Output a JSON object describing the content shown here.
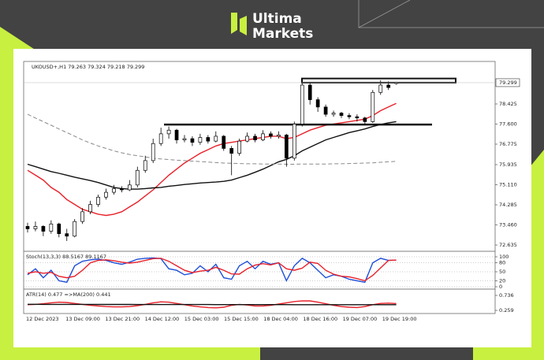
{
  "header": {
    "brand_line1": "Ultima",
    "brand_line2": "Markets"
  },
  "chart_data": [
    {
      "type": "candlestick",
      "title": "UKOUSD+,H1  79.263 79.324 79.218 79.299",
      "open": [
        73.4,
        73.3,
        73.4,
        73.2,
        73.5,
        73.1,
        73.0,
        73.6,
        74.0,
        74.3,
        74.6,
        74.8,
        74.95,
        74.9,
        75.1,
        75.7,
        76.1,
        76.8,
        77.2,
        77.35,
        76.95,
        77.0,
        76.85,
        77.05,
        76.9,
        77.1,
        76.6,
        76.4,
        76.9,
        77.1,
        76.95,
        77.2,
        77.1,
        77.15,
        76.2,
        77.6,
        79.2,
        78.6,
        78.3,
        78.0,
        78.05,
        77.95,
        77.9,
        77.85,
        77.7,
        78.9,
        79.2,
        79.263
      ],
      "high": [
        73.55,
        73.6,
        73.45,
        73.65,
        73.55,
        73.3,
        73.7,
        74.15,
        74.45,
        74.7,
        74.95,
        75.1,
        75.05,
        75.3,
        75.85,
        76.3,
        77.0,
        77.45,
        77.5,
        77.4,
        77.15,
        77.1,
        77.2,
        77.15,
        77.3,
        77.15,
        76.7,
        77.0,
        77.25,
        77.2,
        77.35,
        77.3,
        77.3,
        77.2,
        77.7,
        79.47,
        79.3,
        78.7,
        78.4,
        78.15,
        78.1,
        78.05,
        78.0,
        77.9,
        79.0,
        79.4,
        79.35,
        79.324
      ],
      "low": [
        73.15,
        73.2,
        73.0,
        73.1,
        72.95,
        72.8,
        72.95,
        73.5,
        73.9,
        74.2,
        74.5,
        74.7,
        74.8,
        74.85,
        75.0,
        75.6,
        76.0,
        76.7,
        77.0,
        76.8,
        76.85,
        76.7,
        76.75,
        76.8,
        76.85,
        76.5,
        75.5,
        76.3,
        76.85,
        76.85,
        76.9,
        77.0,
        77.0,
        75.85,
        76.1,
        77.5,
        78.4,
        78.1,
        77.9,
        77.9,
        77.85,
        77.8,
        77.7,
        77.6,
        77.65,
        78.8,
        79.0,
        79.218
      ],
      "close": [
        73.3,
        73.4,
        73.2,
        73.5,
        73.1,
        73.0,
        73.6,
        74.0,
        74.3,
        74.6,
        74.8,
        74.95,
        74.9,
        75.1,
        75.7,
        76.1,
        76.8,
        77.2,
        77.35,
        76.95,
        77.0,
        76.85,
        77.05,
        76.9,
        77.1,
        76.6,
        76.4,
        76.9,
        77.1,
        76.95,
        77.2,
        77.1,
        77.15,
        76.2,
        77.6,
        79.2,
        78.6,
        78.3,
        78.0,
        78.05,
        77.95,
        77.9,
        77.85,
        77.7,
        78.9,
        79.2,
        79.1,
        79.299
      ],
      "up_color": "#ffffff",
      "down_color": "#000000",
      "lines": [
        {
          "color": "#e8212a",
          "values": [
            75.7,
            75.5,
            75.3,
            75.0,
            74.8,
            74.5,
            74.3,
            74.1,
            74.0,
            73.9,
            73.85,
            73.9,
            74.0,
            74.2,
            74.4,
            74.65,
            74.9,
            75.2,
            75.5,
            75.75,
            76.0,
            76.2,
            76.4,
            76.55,
            76.7,
            76.8,
            76.85,
            76.9,
            76.95,
            77.0,
            77.05,
            77.1,
            77.1,
            77.0,
            77.05,
            77.2,
            77.35,
            77.45,
            77.55,
            77.6,
            77.65,
            77.7,
            77.75,
            77.8,
            77.95,
            78.15,
            78.3,
            78.45
          ]
        },
        {
          "color": "#111111",
          "values": [
            75.95,
            75.85,
            75.75,
            75.65,
            75.58,
            75.5,
            75.42,
            75.35,
            75.28,
            75.2,
            75.1,
            75.0,
            74.95,
            74.93,
            74.93,
            74.95,
            74.98,
            75.0,
            75.05,
            75.08,
            75.12,
            75.15,
            75.18,
            75.2,
            75.22,
            75.25,
            75.3,
            75.4,
            75.5,
            75.62,
            75.75,
            75.9,
            76.05,
            76.15,
            76.3,
            76.5,
            76.65,
            76.8,
            76.95,
            77.05,
            77.15,
            77.25,
            77.32,
            77.4,
            77.5,
            77.58,
            77.65,
            77.7
          ]
        },
        {
          "color": "#8a8a8a",
          "dash": true,
          "values": [
            78.0,
            77.85,
            77.7,
            77.55,
            77.4,
            77.25,
            77.1,
            76.95,
            76.82,
            76.7,
            76.6,
            76.5,
            76.42,
            76.35,
            76.3,
            76.25,
            76.2,
            76.17,
            76.14,
            76.12,
            76.1,
            76.08,
            76.06,
            76.04,
            76.02,
            76.0,
            75.99,
            75.98,
            75.97,
            75.97,
            75.96,
            75.96,
            75.96,
            75.95,
            75.95,
            75.96,
            75.96,
            75.96,
            75.96,
            75.97,
            75.97,
            75.98,
            75.99,
            76.0,
            76.01,
            76.03,
            76.05,
            76.07
          ]
        }
      ],
      "levels": [
        77.58
      ],
      "zone": [
        79.3,
        79.47
      ],
      "last_price": 79.299,
      "ylim": [
        72.41,
        80.17
      ],
      "yticks": [
        78.425,
        {
          "value": 77.6,
          "label": "77.600"
        },
        76.775,
        75.935,
        {
          "value": 75.11,
          "label": "75.110"
        },
        74.285,
        {
          "value": 73.46,
          "label": "73.460"
        },
        72.635
      ],
      "xticks": [
        "12 Dec 2023",
        "13 Dec 09:00",
        "13 Dec 21:00",
        "14 Dec 12:00",
        "15 Dec 03:00",
        "15 Dec 15:00",
        "18 Dec 04:00",
        "18 Dec 16:00",
        "19 Dec 07:00",
        "19 Dec 19:00"
      ]
    },
    {
      "type": "line",
      "title": "Stoch(13,3,3) 88.5167 89.1167",
      "ylim": [
        0,
        100
      ],
      "yticks": [
        0,
        20,
        50,
        80,
        100
      ],
      "series": [
        {
          "color": "#1e4fd8",
          "values": [
            40,
            60,
            30,
            55,
            20,
            15,
            70,
            85,
            90,
            92,
            88,
            80,
            75,
            82,
            92,
            95,
            96,
            94,
            60,
            55,
            40,
            45,
            70,
            50,
            75,
            30,
            25,
            70,
            85,
            60,
            85,
            75,
            80,
            20,
            70,
            95,
            80,
            55,
            30,
            40,
            35,
            25,
            20,
            15,
            80,
            95,
            88,
            89
          ]
        },
        {
          "color": "#e8212a",
          "values": [
            45,
            50,
            45,
            48,
            35,
            30,
            35,
            55,
            80,
            88,
            90,
            87,
            82,
            79,
            82,
            88,
            94,
            95,
            85,
            70,
            55,
            47,
            52,
            55,
            65,
            55,
            43,
            42,
            60,
            72,
            77,
            73,
            80,
            60,
            55,
            62,
            82,
            78,
            55,
            42,
            35,
            33,
            27,
            20,
            38,
            63,
            88,
            89
          ]
        }
      ]
    },
    {
      "type": "line",
      "title": "ATR(14) 0.477  =>MA(200) 0.441",
      "ylim": [
        0.184,
        0.887
      ],
      "yticks": [
        0.259,
        0.736
      ],
      "series": [
        {
          "color": "#e8212a",
          "values": [
            0.44,
            0.45,
            0.47,
            0.5,
            0.52,
            0.51,
            0.48,
            0.45,
            0.42,
            0.4,
            0.38,
            0.37,
            0.37,
            0.38,
            0.41,
            0.45,
            0.5,
            0.53,
            0.52,
            0.48,
            0.44,
            0.4,
            0.37,
            0.35,
            0.34,
            0.36,
            0.42,
            0.45,
            0.43,
            0.4,
            0.4,
            0.42,
            0.46,
            0.5,
            0.54,
            0.56,
            0.56,
            0.52,
            0.47,
            0.42,
            0.38,
            0.36,
            0.35,
            0.38,
            0.44,
            0.48,
            0.49,
            0.477
          ]
        },
        {
          "color": "#111111",
          "values": [
            0.452,
            0.452,
            0.451,
            0.451,
            0.45,
            0.45,
            0.45,
            0.449,
            0.449,
            0.448,
            0.448,
            0.447,
            0.447,
            0.447,
            0.446,
            0.446,
            0.446,
            0.445,
            0.445,
            0.445,
            0.444,
            0.444,
            0.444,
            0.444,
            0.443,
            0.443,
            0.443,
            0.443,
            0.442,
            0.442,
            0.442,
            0.442,
            0.442,
            0.442,
            0.441,
            0.441,
            0.441,
            0.441,
            0.441,
            0.441,
            0.441,
            0.441,
            0.441,
            0.441,
            0.441,
            0.441,
            0.441,
            0.441
          ]
        }
      ]
    }
  ]
}
